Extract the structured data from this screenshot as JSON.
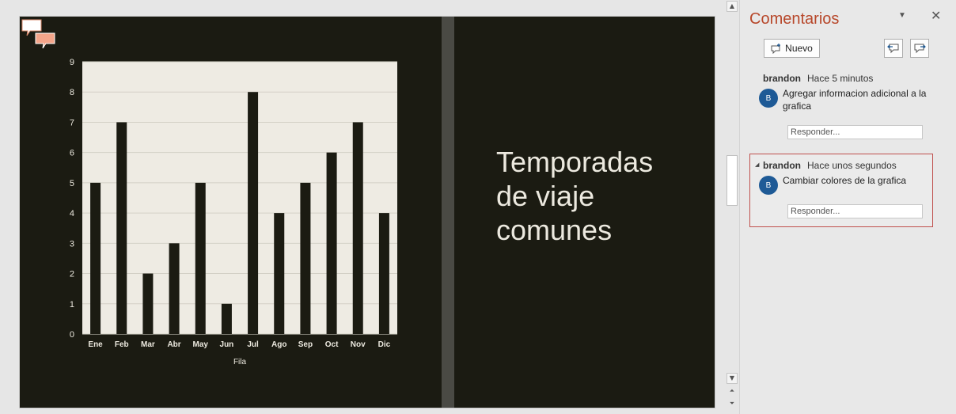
{
  "slide": {
    "title": "Temporadas\nde viaje\ncomunes",
    "colors": {
      "background": "#1b1b12",
      "plot_area": "#eeebe3",
      "bars": "#1b1b12",
      "text": "#ece9df"
    }
  },
  "chart_data": {
    "type": "bar",
    "categories": [
      "Ene",
      "Feb",
      "Mar",
      "Abr",
      "May",
      "Jun",
      "Jul",
      "Ago",
      "Sep",
      "Oct",
      "Nov",
      "Dic"
    ],
    "values": [
      5,
      7,
      2,
      3,
      5,
      1,
      8,
      4,
      5,
      6,
      7,
      4
    ],
    "title": "",
    "xlabel": "Fila",
    "ylabel": "",
    "ylim": [
      0,
      9
    ],
    "yticks": [
      0,
      1,
      2,
      3,
      4,
      5,
      6,
      7,
      8,
      9
    ],
    "grid": true,
    "legend": "none"
  },
  "pane": {
    "title": "Comentarios",
    "menu_icon": "dropdown-triangle-icon",
    "close_icon": "close-icon",
    "new_label": "Nuevo",
    "prev_icon": "previous-comment-icon",
    "next_icon": "next-comment-icon"
  },
  "comments": [
    {
      "author": "brandon",
      "time": "Hace 5 minutos",
      "initial": "B",
      "text": "Agregar informacion adicional a la grafica",
      "reply_placeholder": "Responder..."
    },
    {
      "author": "brandon",
      "time": "Hace unos segundos",
      "initial": "B",
      "text": "Cambiar colores de la grafica",
      "reply_placeholder": "Responder..."
    }
  ]
}
